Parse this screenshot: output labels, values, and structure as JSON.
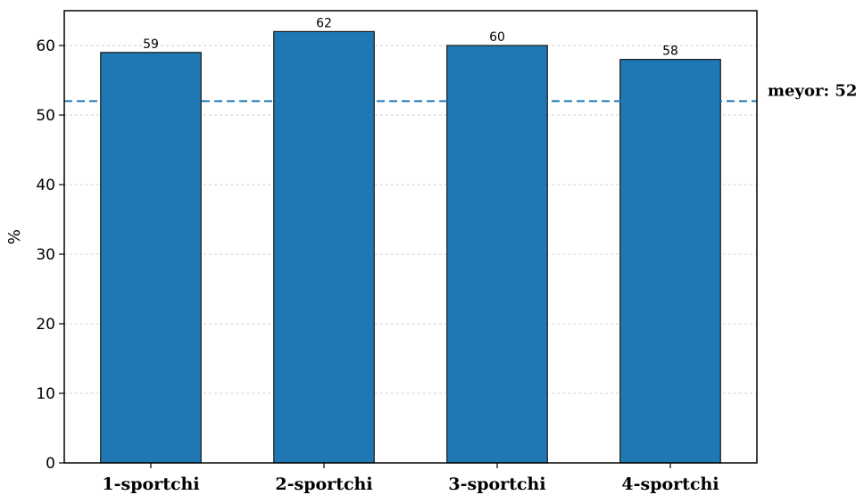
{
  "chart_data": {
    "type": "bar",
    "categories": [
      "1-sportchi",
      "2-sportchi",
      "3-sportchi",
      "4-sportchi"
    ],
    "values": [
      59,
      62,
      60,
      58
    ],
    "data_labels": [
      "59",
      "62",
      "60",
      "58"
    ],
    "ylabel": "%",
    "ylim": [
      0,
      65
    ],
    "yticks": [
      0,
      10,
      20,
      30,
      40,
      50,
      60
    ],
    "grid": true,
    "bar_color": "#1f77b4",
    "bar_edge_color": "#1a1a1a",
    "reference_line": {
      "value": 52,
      "label": "meyor: 52",
      "color": "#1f77b4",
      "style": "dashed"
    }
  }
}
